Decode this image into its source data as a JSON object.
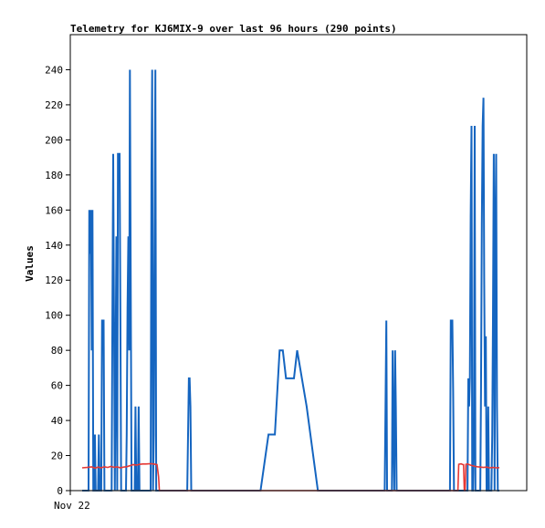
{
  "chart_data": {
    "type": "line",
    "title": "Telemetry for KJ6MIX-9 over last 96 hours (290 points)",
    "xlabel": "",
    "ylabel": "Values",
    "x_tick_labels": [
      "Nov 22"
    ],
    "ylim": [
      0,
      260
    ],
    "y_ticks": [
      0,
      20,
      40,
      60,
      80,
      100,
      120,
      140,
      160,
      180,
      200,
      220,
      240
    ],
    "grid": false,
    "legend": "none",
    "x_units": "point index 0-289",
    "series": [
      {
        "color": "#1565c0",
        "points": [
          [
            0,
            0
          ],
          [
            1,
            0
          ],
          [
            2,
            0
          ],
          [
            3,
            0
          ],
          [
            4,
            0
          ],
          [
            4.5,
            160
          ],
          [
            5,
            135
          ],
          [
            5.5,
            160
          ],
          [
            6,
            80
          ],
          [
            6.5,
            160
          ],
          [
            7,
            0
          ],
          [
            7.5,
            0
          ],
          [
            8,
            32
          ],
          [
            8.5,
            0
          ],
          [
            9,
            0
          ],
          [
            10,
            0
          ],
          [
            10.5,
            32
          ],
          [
            11,
            0
          ],
          [
            12,
            0
          ],
          [
            12.5,
            97
          ],
          [
            13,
            97
          ],
          [
            13.5,
            97
          ],
          [
            14,
            0
          ],
          [
            15,
            0
          ],
          [
            16,
            0
          ],
          [
            17,
            0
          ],
          [
            18,
            0
          ],
          [
            18.5,
            0
          ],
          [
            19,
            97
          ],
          [
            19.5,
            192
          ],
          [
            20,
            97
          ],
          [
            20.5,
            0
          ],
          [
            21,
            72
          ],
          [
            21.5,
            145
          ],
          [
            22,
            0
          ],
          [
            22.5,
            192
          ],
          [
            23,
            192
          ],
          [
            23.5,
            192
          ],
          [
            24,
            97
          ],
          [
            24.5,
            0
          ],
          [
            25,
            0
          ],
          [
            26,
            0
          ],
          [
            27,
            0
          ],
          [
            27.5,
            0
          ],
          [
            28,
            32
          ],
          [
            28.5,
            104
          ],
          [
            29,
            145
          ],
          [
            29.5,
            80
          ],
          [
            30,
            240
          ],
          [
            30.5,
            120
          ],
          [
            31,
            0
          ],
          [
            32,
            0
          ],
          [
            33,
            0
          ],
          [
            33.5,
            48
          ],
          [
            34,
            0
          ],
          [
            35,
            0
          ],
          [
            35.5,
            48
          ],
          [
            36,
            0
          ],
          [
            37,
            0
          ],
          [
            38,
            0
          ],
          [
            39,
            0
          ],
          [
            40,
            0
          ],
          [
            41,
            0
          ],
          [
            42,
            0
          ],
          [
            43,
            0
          ],
          [
            43.5,
            180
          ],
          [
            44,
            240
          ],
          [
            44.5,
            0
          ],
          [
            45,
            32
          ],
          [
            45.5,
            152
          ],
          [
            46,
            240
          ],
          [
            46.5,
            0
          ],
          [
            47,
            0
          ],
          [
            48,
            0
          ],
          [
            50,
            0
          ],
          [
            55,
            0
          ],
          [
            60,
            0
          ],
          [
            65,
            0
          ],
          [
            66,
            0
          ],
          [
            66.5,
            32
          ],
          [
            67,
            64
          ],
          [
            67.5,
            64
          ],
          [
            68,
            48
          ],
          [
            68.5,
            0
          ],
          [
            70,
            0
          ],
          [
            80,
            0
          ],
          [
            90,
            0
          ],
          [
            100,
            0
          ],
          [
            110,
            0
          ],
          [
            112,
            0
          ],
          [
            117,
            32
          ],
          [
            120,
            32
          ],
          [
            121,
            32
          ],
          [
            124,
            80
          ],
          [
            126,
            80
          ],
          [
            128,
            64
          ],
          [
            133,
            64
          ],
          [
            135,
            80
          ],
          [
            141,
            48
          ],
          [
            148,
            0
          ],
          [
            155,
            0
          ],
          [
            165,
            0
          ],
          [
            175,
            0
          ],
          [
            185,
            0
          ],
          [
            190,
            0
          ],
          [
            190.5,
            48
          ],
          [
            191,
            97
          ],
          [
            191.5,
            0
          ],
          [
            192,
            0
          ],
          [
            193,
            0
          ],
          [
            194,
            0
          ],
          [
            194.5,
            0
          ],
          [
            195,
            80
          ],
          [
            195.5,
            32
          ],
          [
            196,
            0
          ],
          [
            196.5,
            80
          ],
          [
            197,
            48
          ],
          [
            197.5,
            0
          ],
          [
            198,
            0
          ],
          [
            205,
            0
          ],
          [
            215,
            0
          ],
          [
            225,
            0
          ],
          [
            230,
            0
          ],
          [
            231,
            0
          ],
          [
            231.5,
            97
          ],
          [
            232,
            97
          ],
          [
            232.5,
            97
          ],
          [
            233,
            56
          ],
          [
            233.5,
            0
          ],
          [
            234,
            0
          ],
          [
            235,
            0
          ],
          [
            236,
            0
          ],
          [
            237,
            0
          ],
          [
            238,
            0
          ],
          [
            239,
            0
          ],
          [
            239.5,
            0
          ],
          [
            240,
            0
          ],
          [
            240.5,
            0
          ],
          [
            241,
            0
          ],
          [
            241.5,
            0
          ],
          [
            242,
            0
          ],
          [
            242.5,
            64
          ],
          [
            243,
            48
          ],
          [
            243.5,
            64
          ],
          [
            244,
            156
          ],
          [
            244.5,
            208
          ],
          [
            245,
            0
          ],
          [
            245.5,
            0
          ],
          [
            246,
            32
          ],
          [
            246.5,
            208
          ],
          [
            247,
            0
          ],
          [
            248,
            0
          ],
          [
            249,
            0
          ],
          [
            249.5,
            0
          ],
          [
            250,
            0
          ],
          [
            250.5,
            56
          ],
          [
            251,
            152
          ],
          [
            251.5,
            208
          ],
          [
            252,
            224
          ],
          [
            252.5,
            120
          ],
          [
            253,
            48
          ],
          [
            253.5,
            88
          ],
          [
            254,
            0
          ],
          [
            254.5,
            0
          ],
          [
            255,
            48
          ],
          [
            255.5,
            0
          ],
          [
            256,
            0
          ],
          [
            257,
            0
          ],
          [
            257.5,
            32
          ],
          [
            258,
            97
          ],
          [
            258.5,
            192
          ],
          [
            259,
            0
          ],
          [
            259.5,
            145
          ],
          [
            260,
            192
          ],
          [
            260.5,
            48
          ],
          [
            261,
            0
          ],
          [
            262,
            0
          ]
        ]
      },
      {
        "color": "#e53935",
        "points": [
          [
            0,
            13
          ],
          [
            3,
            13.2
          ],
          [
            6,
            13.5
          ],
          [
            8,
            12.8
          ],
          [
            10,
            13.4
          ],
          [
            12,
            13
          ],
          [
            14,
            13.6
          ],
          [
            16,
            13.2
          ],
          [
            18,
            13.8
          ],
          [
            20,
            13.3
          ],
          [
            22,
            13.5
          ],
          [
            24,
            13
          ],
          [
            26,
            13.4
          ],
          [
            28,
            13.6
          ],
          [
            30,
            14.2
          ],
          [
            32,
            14.8
          ],
          [
            34,
            14.5
          ],
          [
            36,
            15
          ],
          [
            38,
            15.2
          ],
          [
            40,
            15.2
          ],
          [
            42,
            15.3
          ],
          [
            44,
            15.3
          ],
          [
            46,
            15
          ],
          [
            47,
            14.8
          ],
          [
            48,
            8
          ],
          [
            48.5,
            0
          ],
          [
            60,
            0
          ],
          [
            80,
            0
          ],
          [
            100,
            0
          ],
          [
            120,
            0
          ],
          [
            140,
            0
          ],
          [
            160,
            0
          ],
          [
            180,
            0
          ],
          [
            200,
            0
          ],
          [
            220,
            0
          ],
          [
            235,
            0
          ],
          [
            236,
            0
          ],
          [
            236.5,
            15
          ],
          [
            238,
            15.3
          ],
          [
            239,
            14.8
          ],
          [
            239.5,
            14.8
          ],
          [
            240,
            0
          ],
          [
            240.5,
            0
          ],
          [
            241,
            15
          ],
          [
            242,
            15.2
          ],
          [
            243,
            14.8
          ],
          [
            244,
            14.5
          ],
          [
            246,
            14
          ],
          [
            248,
            13.6
          ],
          [
            250,
            13.4
          ],
          [
            252,
            13.2
          ],
          [
            254,
            13.4
          ],
          [
            256,
            13
          ],
          [
            258,
            13.2
          ],
          [
            260,
            13
          ],
          [
            262,
            13.1
          ]
        ]
      },
      {
        "color": "#222222",
        "points": [
          [
            0,
            0
          ],
          [
            262,
            0
          ]
        ]
      }
    ]
  }
}
